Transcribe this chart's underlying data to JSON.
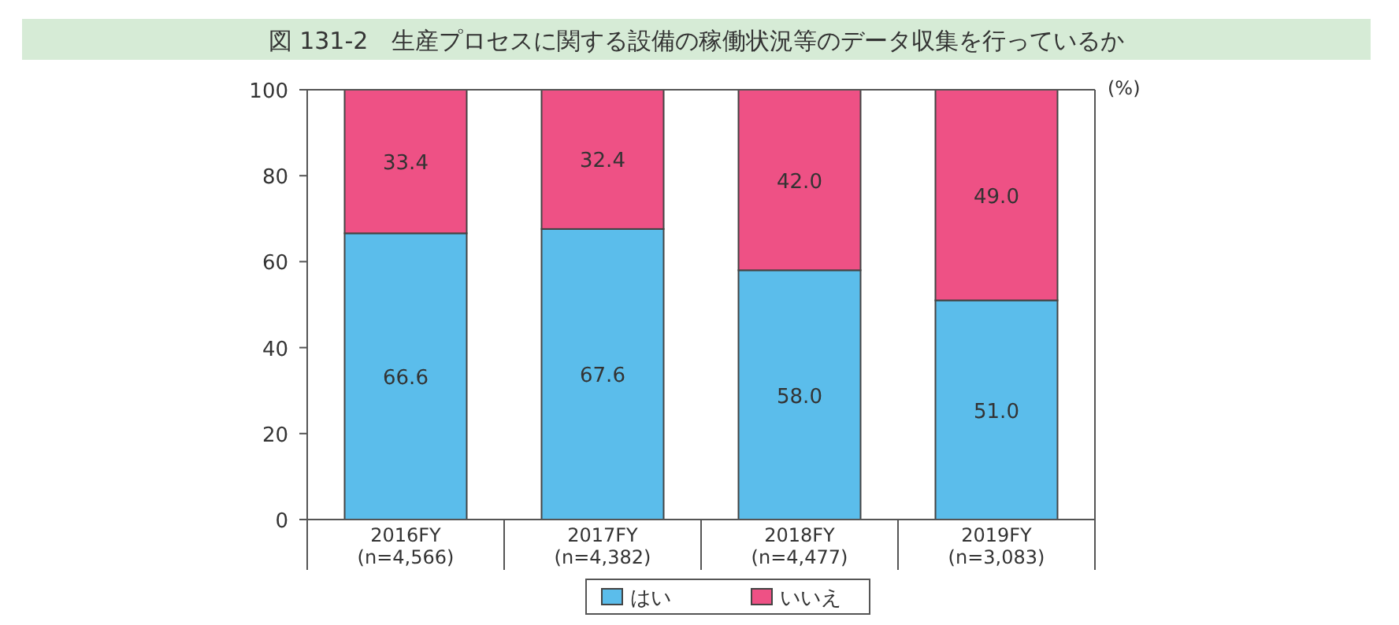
{
  "chart_data": {
    "type": "bar",
    "stacked": true,
    "title": "図 131-2　生産プロセスに関する設備の稼働状況等のデータ収集を行っているか",
    "ylabel": "(%)",
    "categories": [
      "2016FY\n(n=4,566)",
      "2017FY\n(n=4,382)",
      "2018FY\n(n=4,477)",
      "2019FY\n(n=3,083)"
    ],
    "series": [
      {
        "name": "はい",
        "color": "#5bbdeb",
        "values": [
          66.6,
          67.6,
          58.0,
          51.0
        ],
        "value_labels": [
          "66.6",
          "67.6",
          "58.0",
          "51.0"
        ]
      },
      {
        "name": "いいえ",
        "color": "#ee5185",
        "values": [
          33.4,
          32.4,
          42.0,
          49.0
        ],
        "value_labels": [
          "33.4",
          "32.4",
          "42.0",
          "49.0"
        ]
      }
    ],
    "ylim": [
      0,
      100
    ],
    "yticks": [
      0,
      20,
      40,
      60,
      80,
      100
    ],
    "legend": "bottom",
    "grid": false
  }
}
